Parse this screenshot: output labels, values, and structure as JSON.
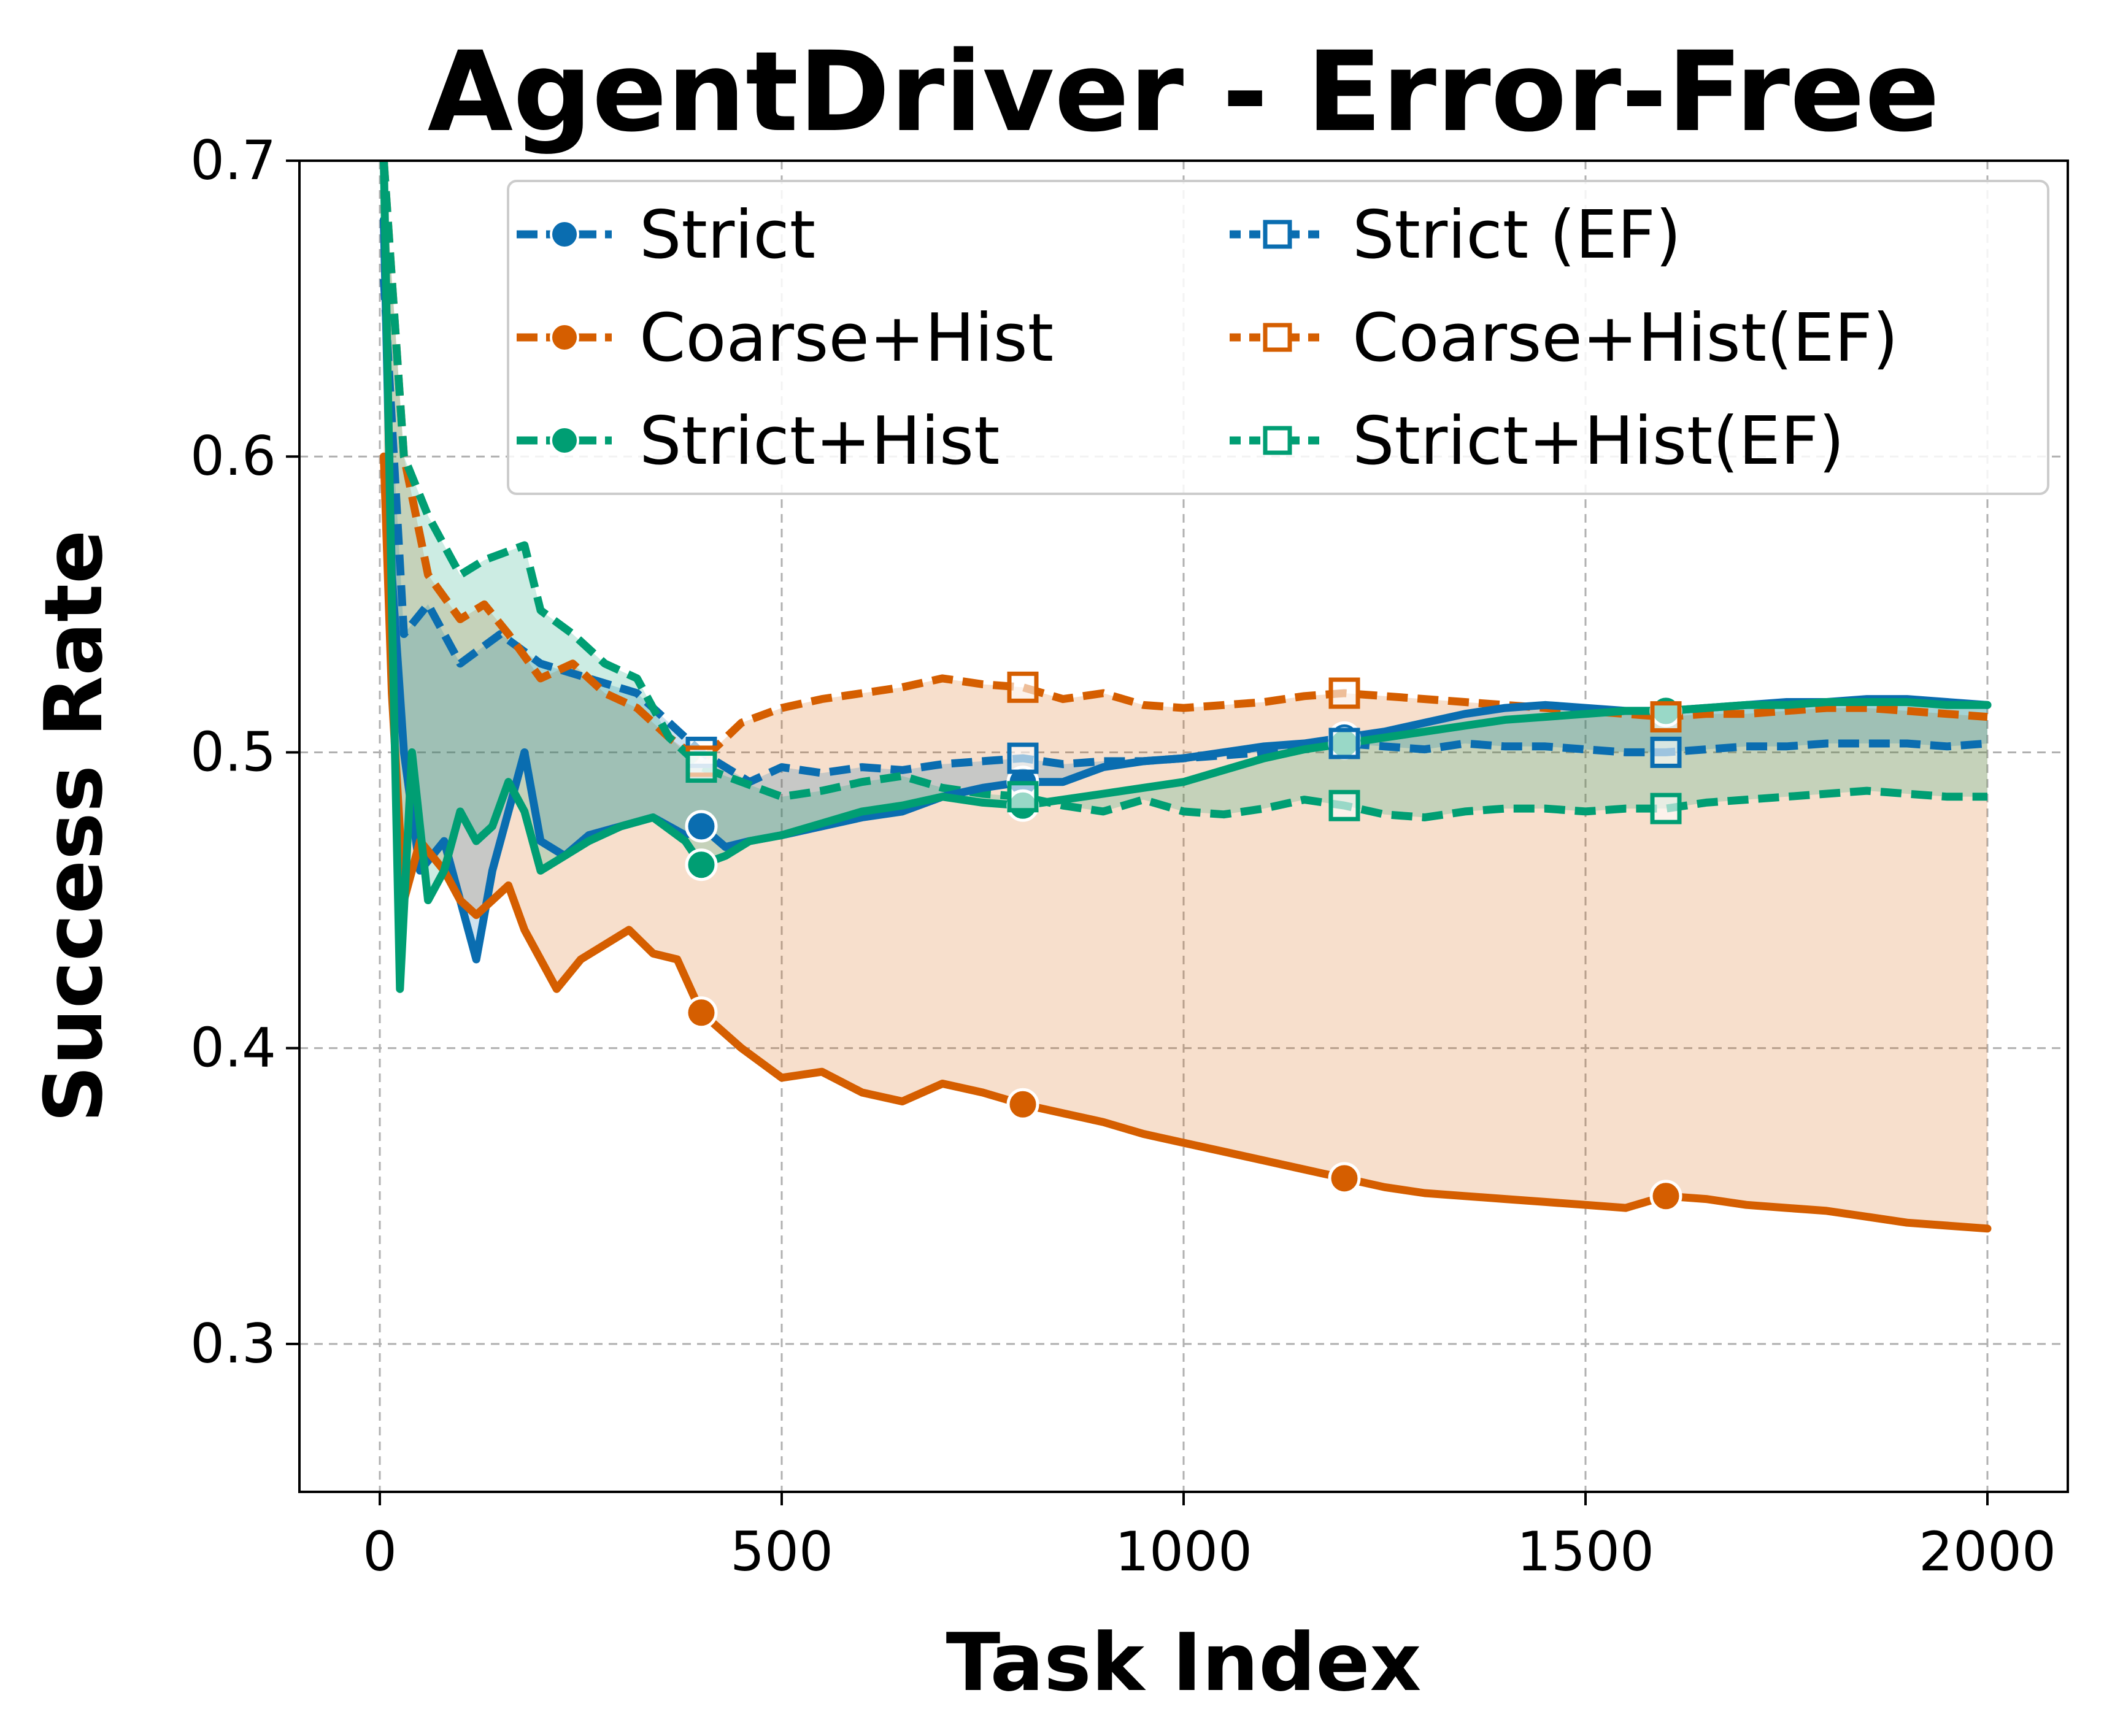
{
  "chart_data": {
    "type": "line",
    "title": "AgentDriver - Error-Free",
    "xlabel": "Task Index",
    "ylabel": "Success Rate",
    "xlim": [
      -100,
      2100
    ],
    "ylim": [
      0.25,
      0.7
    ],
    "xticks": [
      0,
      500,
      1000,
      1500,
      2000
    ],
    "yticks": [
      0.3,
      0.4,
      0.5,
      0.6,
      0.7
    ],
    "grid": true,
    "legend_position": "top-right",
    "legend_columns": 2,
    "colors": {
      "blue": "#0a6db0",
      "orange": "#d55e00",
      "green": "#009e73"
    },
    "series": [
      {
        "name": "Strict",
        "color": "#0a6db0",
        "style": "solid",
        "marker": "circle",
        "legend_style": "dashed",
        "x": [
          5,
          15,
          30,
          50,
          80,
          100,
          120,
          140,
          160,
          180,
          200,
          230,
          260,
          300,
          340,
          380,
          400,
          430,
          460,
          500,
          550,
          600,
          650,
          700,
          750,
          800,
          850,
          900,
          950,
          1000,
          1050,
          1100,
          1150,
          1200,
          1250,
          1300,
          1350,
          1400,
          1450,
          1500,
          1550,
          1600,
          1650,
          1700,
          1750,
          1800,
          1850,
          1900,
          1950,
          2000
        ],
        "y": [
          0.68,
          0.56,
          0.5,
          0.46,
          0.47,
          0.45,
          0.43,
          0.46,
          0.48,
          0.5,
          0.47,
          0.465,
          0.472,
          0.475,
          0.478,
          0.472,
          0.475,
          0.468,
          0.47,
          0.472,
          0.475,
          0.478,
          0.48,
          0.485,
          0.488,
          0.49,
          0.49,
          0.495,
          0.497,
          0.498,
          0.5,
          0.502,
          0.503,
          0.505,
          0.507,
          0.51,
          0.513,
          0.515,
          0.516,
          0.515,
          0.514,
          0.514,
          0.515,
          0.516,
          0.517,
          0.517,
          0.518,
          0.518,
          0.517,
          0.516
        ]
      },
      {
        "name": "Coarse+Hist",
        "color": "#d55e00",
        "style": "solid",
        "marker": "circle",
        "legend_style": "dashed",
        "x": [
          5,
          15,
          30,
          50,
          80,
          100,
          120,
          140,
          160,
          180,
          200,
          220,
          250,
          280,
          310,
          340,
          370,
          400,
          450,
          500,
          550,
          600,
          650,
          700,
          750,
          800,
          850,
          900,
          950,
          1000,
          1050,
          1100,
          1150,
          1200,
          1250,
          1300,
          1350,
          1400,
          1450,
          1500,
          1550,
          1600,
          1650,
          1700,
          1750,
          1800,
          1850,
          1900,
          1950,
          2000
        ],
        "y": [
          0.6,
          0.52,
          0.45,
          0.47,
          0.46,
          0.45,
          0.445,
          0.45,
          0.455,
          0.44,
          0.43,
          0.42,
          0.43,
          0.435,
          0.44,
          0.432,
          0.43,
          0.412,
          0.4,
          0.39,
          0.392,
          0.385,
          0.382,
          0.388,
          0.385,
          0.381,
          0.378,
          0.375,
          0.371,
          0.368,
          0.365,
          0.362,
          0.359,
          0.356,
          0.353,
          0.351,
          0.35,
          0.349,
          0.348,
          0.347,
          0.346,
          0.35,
          0.349,
          0.347,
          0.346,
          0.345,
          0.343,
          0.341,
          0.34,
          0.339
        ]
      },
      {
        "name": "Strict+Hist",
        "color": "#009e73",
        "style": "solid",
        "marker": "circle",
        "legend_style": "dashed",
        "x": [
          5,
          15,
          25,
          40,
          60,
          80,
          100,
          120,
          140,
          160,
          180,
          200,
          230,
          260,
          300,
          340,
          380,
          400,
          430,
          460,
          500,
          550,
          600,
          650,
          700,
          750,
          800,
          850,
          900,
          950,
          1000,
          1050,
          1100,
          1150,
          1200,
          1250,
          1300,
          1350,
          1400,
          1450,
          1500,
          1550,
          1600,
          1650,
          1700,
          1750,
          1800,
          1850,
          1900,
          1950,
          2000
        ],
        "y": [
          0.7,
          0.55,
          0.42,
          0.5,
          0.45,
          0.46,
          0.48,
          0.47,
          0.475,
          0.49,
          0.48,
          0.46,
          0.465,
          0.47,
          0.475,
          0.478,
          0.47,
          0.462,
          0.465,
          0.47,
          0.472,
          0.476,
          0.48,
          0.482,
          0.485,
          0.483,
          0.482,
          0.484,
          0.486,
          0.488,
          0.49,
          0.494,
          0.498,
          0.501,
          0.503,
          0.505,
          0.507,
          0.509,
          0.511,
          0.512,
          0.513,
          0.514,
          0.514,
          0.515,
          0.516,
          0.516,
          0.517,
          0.517,
          0.517,
          0.516,
          0.516
        ]
      },
      {
        "name": "Strict (EF)",
        "color": "#0a6db0",
        "style": "dashed",
        "marker": "square-open",
        "legend_style": "dotted",
        "x": [
          5,
          30,
          60,
          100,
          150,
          200,
          260,
          320,
          360,
          400,
          460,
          500,
          550,
          600,
          650,
          700,
          750,
          800,
          850,
          900,
          950,
          1000,
          1050,
          1100,
          1150,
          1200,
          1250,
          1300,
          1350,
          1400,
          1450,
          1500,
          1550,
          1600,
          1650,
          1700,
          1750,
          1800,
          1850,
          1900,
          1950,
          2000
        ],
        "y": [
          0.66,
          0.54,
          0.55,
          0.53,
          0.54,
          0.53,
          0.525,
          0.52,
          0.51,
          0.5,
          0.49,
          0.495,
          0.493,
          0.495,
          0.494,
          0.496,
          0.497,
          0.498,
          0.496,
          0.497,
          0.497,
          0.498,
          0.499,
          0.5,
          0.501,
          0.503,
          0.502,
          0.501,
          0.503,
          0.502,
          0.502,
          0.501,
          0.5,
          0.5,
          0.501,
          0.502,
          0.502,
          0.503,
          0.503,
          0.503,
          0.502,
          0.503
        ]
      },
      {
        "name": "Coarse+Hist(EF)",
        "color": "#d55e00",
        "style": "dashed",
        "marker": "square-open",
        "legend_style": "dotted",
        "x": [
          5,
          30,
          60,
          100,
          130,
          160,
          200,
          240,
          280,
          320,
          360,
          400,
          450,
          500,
          550,
          600,
          650,
          700,
          750,
          800,
          850,
          900,
          950,
          1000,
          1050,
          1100,
          1150,
          1200,
          1250,
          1300,
          1350,
          1400,
          1450,
          1500,
          1550,
          1600,
          1650,
          1700,
          1750,
          1800,
          1850,
          1900,
          1950,
          2000
        ],
        "y": [
          0.7,
          0.6,
          0.56,
          0.545,
          0.55,
          0.54,
          0.525,
          0.53,
          0.52,
          0.515,
          0.505,
          0.497,
          0.51,
          0.515,
          0.518,
          0.52,
          0.522,
          0.525,
          0.523,
          0.522,
          0.518,
          0.52,
          0.516,
          0.515,
          0.516,
          0.517,
          0.519,
          0.52,
          0.519,
          0.518,
          0.517,
          0.516,
          0.515,
          0.514,
          0.513,
          0.512,
          0.513,
          0.513,
          0.514,
          0.515,
          0.515,
          0.514,
          0.513,
          0.512
        ]
      },
      {
        "name": "Strict+Hist(EF)",
        "color": "#009e73",
        "style": "dashed",
        "marker": "square-open",
        "legend_style": "dotted",
        "x": [
          5,
          30,
          60,
          100,
          130,
          160,
          180,
          200,
          240,
          280,
          320,
          360,
          400,
          450,
          500,
          550,
          600,
          650,
          700,
          750,
          800,
          850,
          900,
          950,
          1000,
          1050,
          1100,
          1150,
          1200,
          1250,
          1300,
          1350,
          1400,
          1450,
          1500,
          1550,
          1600,
          1650,
          1700,
          1750,
          1800,
          1850,
          1900,
          1950,
          2000
        ],
        "y": [
          0.7,
          0.6,
          0.58,
          0.56,
          0.565,
          0.568,
          0.57,
          0.548,
          0.54,
          0.53,
          0.525,
          0.505,
          0.495,
          0.49,
          0.485,
          0.487,
          0.49,
          0.492,
          0.488,
          0.486,
          0.485,
          0.482,
          0.48,
          0.484,
          0.48,
          0.479,
          0.481,
          0.484,
          0.482,
          0.479,
          0.478,
          0.48,
          0.481,
          0.481,
          0.48,
          0.481,
          0.481,
          0.483,
          0.484,
          0.485,
          0.486,
          0.487,
          0.486,
          0.485,
          0.485
        ]
      }
    ],
    "shaded_regions": [
      {
        "between": [
          "Coarse+Hist",
          "Coarse+Hist(EF)"
        ],
        "color": "#d55e00",
        "opacity": 0.2
      },
      {
        "between": [
          "Strict",
          "Strict (EF)"
        ],
        "color": "#0a6db0",
        "opacity": 0.2
      },
      {
        "between": [
          "Strict+Hist",
          "Strict+Hist(EF)"
        ],
        "color": "#009e73",
        "opacity": 0.2
      }
    ],
    "marker_x": [
      400,
      800,
      1200,
      1600
    ]
  }
}
